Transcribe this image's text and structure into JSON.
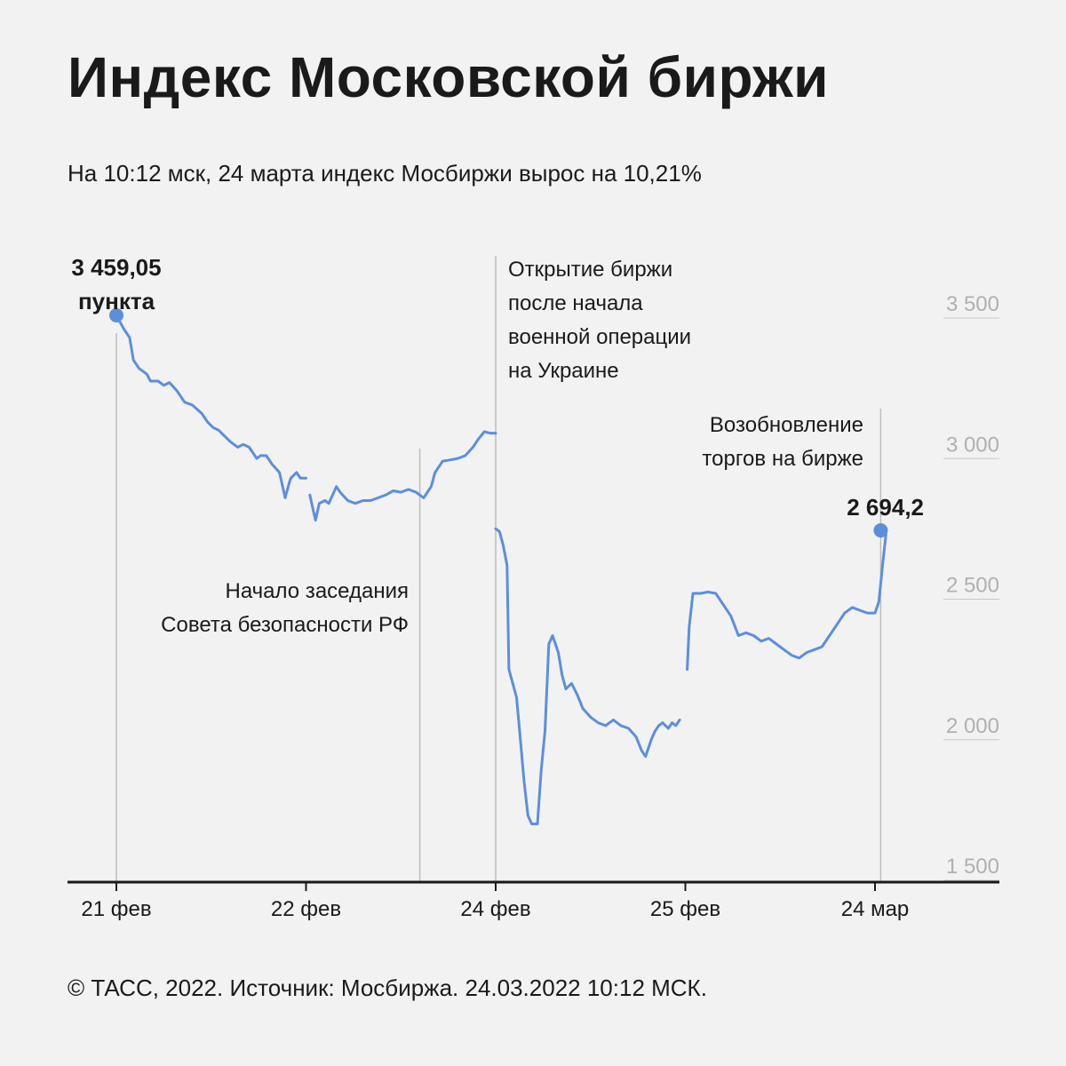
{
  "title": "Индекс Московской биржи",
  "subtitle": "На 10:12 мск, 24 марта индекс Мосбиржи вырос на 10,21%",
  "footer": "© ТАСС, 2022. Источник: Мосбиржа. 24.03.2022 10:12 МСК.",
  "colors": {
    "line": "#5b8fdc",
    "marker": "#5b8fdc",
    "grid": "#c8c8c8",
    "axis": "#1a1a1a",
    "background": "#f2f2f2"
  },
  "chart_data": {
    "type": "line",
    "title": "Индекс Московской биржи",
    "ylim": [
      1500,
      3500
    ],
    "yticks": [
      1500,
      2000,
      2500,
      3000,
      3500
    ],
    "ytick_labels": [
      "1 500",
      "2 000",
      "2 500",
      "3 000",
      "3 500"
    ],
    "grid": "horizontal",
    "x_domain": [
      0,
      5
    ],
    "xticks": [
      {
        "x": 0,
        "label": "21 фев"
      },
      {
        "x": 1,
        "label": "22 фев"
      },
      {
        "x": 2,
        "label": "24 фев"
      },
      {
        "x": 3,
        "label": "25 фев"
      },
      {
        "x": 4,
        "label": "24 мар"
      }
    ],
    "segments": [
      [
        [
          0.0,
          3459
        ],
        [
          0.04,
          3410
        ],
        [
          0.07,
          3380
        ],
        [
          0.09,
          3300
        ],
        [
          0.12,
          3270
        ],
        [
          0.16,
          3250
        ],
        [
          0.18,
          3225
        ],
        [
          0.22,
          3225
        ],
        [
          0.25,
          3210
        ],
        [
          0.28,
          3220
        ],
        [
          0.32,
          3190
        ],
        [
          0.36,
          3150
        ],
        [
          0.4,
          3140
        ],
        [
          0.45,
          3110
        ],
        [
          0.48,
          3080
        ],
        [
          0.51,
          3060
        ],
        [
          0.54,
          3050
        ],
        [
          0.57,
          3030
        ],
        [
          0.6,
          3010
        ],
        [
          0.64,
          2990
        ],
        [
          0.67,
          3000
        ],
        [
          0.7,
          2990
        ],
        [
          0.72,
          2970
        ],
        [
          0.74,
          2950
        ],
        [
          0.76,
          2960
        ],
        [
          0.79,
          2960
        ],
        [
          0.82,
          2930
        ],
        [
          0.86,
          2900
        ],
        [
          0.88,
          2840
        ],
        [
          0.89,
          2810
        ],
        [
          0.91,
          2860
        ],
        [
          0.92,
          2880
        ],
        [
          0.95,
          2900
        ],
        [
          0.97,
          2880
        ],
        [
          1.0,
          2880
        ]
      ],
      [
        [
          1.02,
          2820
        ],
        [
          1.04,
          2760
        ],
        [
          1.05,
          2730
        ],
        [
          1.07,
          2790
        ],
        [
          1.1,
          2800
        ],
        [
          1.12,
          2790
        ],
        [
          1.16,
          2850
        ],
        [
          1.18,
          2830
        ],
        [
          1.22,
          2800
        ],
        [
          1.26,
          2790
        ],
        [
          1.3,
          2800
        ],
        [
          1.34,
          2800
        ],
        [
          1.38,
          2810
        ],
        [
          1.42,
          2820
        ],
        [
          1.46,
          2835
        ],
        [
          1.5,
          2830
        ],
        [
          1.54,
          2840
        ],
        [
          1.58,
          2830
        ],
        [
          1.62,
          2810
        ],
        [
          1.66,
          2850
        ],
        [
          1.68,
          2900
        ],
        [
          1.72,
          2940
        ],
        [
          1.76,
          2945
        ],
        [
          1.8,
          2950
        ],
        [
          1.84,
          2960
        ],
        [
          1.88,
          2990
        ],
        [
          1.91,
          3020
        ],
        [
          1.94,
          3045
        ],
        [
          1.97,
          3040
        ],
        [
          2.0,
          3040
        ]
      ],
      [
        [
          2.0,
          2700
        ],
        [
          2.02,
          2690
        ],
        [
          2.04,
          2640
        ],
        [
          2.06,
          2570
        ],
        [
          2.07,
          2200
        ],
        [
          2.09,
          2150
        ],
        [
          2.11,
          2100
        ],
        [
          2.13,
          1950
        ],
        [
          2.15,
          1800
        ],
        [
          2.17,
          1680
        ],
        [
          2.19,
          1650
        ],
        [
          2.22,
          1650
        ],
        [
          2.24,
          1840
        ],
        [
          2.26,
          1980
        ],
        [
          2.28,
          2290
        ],
        [
          2.3,
          2320
        ],
        [
          2.33,
          2260
        ],
        [
          2.35,
          2180
        ],
        [
          2.37,
          2130
        ],
        [
          2.4,
          2150
        ],
        [
          2.43,
          2110
        ],
        [
          2.46,
          2060
        ],
        [
          2.5,
          2030
        ],
        [
          2.54,
          2010
        ],
        [
          2.58,
          2000
        ],
        [
          2.62,
          2020
        ],
        [
          2.66,
          2000
        ],
        [
          2.7,
          1990
        ],
        [
          2.74,
          1960
        ],
        [
          2.77,
          1910
        ],
        [
          2.79,
          1890
        ],
        [
          2.82,
          1950
        ],
        [
          2.84,
          1980
        ],
        [
          2.86,
          2000
        ],
        [
          2.88,
          2010
        ],
        [
          2.91,
          1990
        ],
        [
          2.93,
          2010
        ],
        [
          2.95,
          2000
        ],
        [
          2.97,
          2020
        ]
      ],
      [
        [
          3.01,
          2200
        ],
        [
          3.02,
          2350
        ],
        [
          3.04,
          2470
        ],
        [
          3.08,
          2470
        ],
        [
          3.12,
          2475
        ],
        [
          3.16,
          2470
        ],
        [
          3.2,
          2430
        ],
        [
          3.24,
          2390
        ],
        [
          3.28,
          2320
        ],
        [
          3.32,
          2330
        ],
        [
          3.36,
          2320
        ],
        [
          3.4,
          2300
        ],
        [
          3.44,
          2310
        ],
        [
          3.48,
          2290
        ],
        [
          3.52,
          2270
        ],
        [
          3.56,
          2250
        ],
        [
          3.6,
          2240
        ],
        [
          3.64,
          2260
        ],
        [
          3.68,
          2270
        ],
        [
          3.72,
          2280
        ],
        [
          3.76,
          2320
        ],
        [
          3.8,
          2360
        ],
        [
          3.84,
          2400
        ],
        [
          3.88,
          2420
        ],
        [
          3.92,
          2410
        ],
        [
          3.96,
          2400
        ],
        [
          4.0,
          2400
        ],
        [
          4.02,
          2440
        ],
        [
          4.04,
          2570
        ],
        [
          4.06,
          2694
        ]
      ]
    ],
    "annotations": [
      {
        "x": 0.0,
        "y": 3459.05,
        "lines": [
          "3 459,05",
          "пункта"
        ],
        "bold": true,
        "marker": true
      },
      {
        "x": 4.03,
        "y": 2694.2,
        "lines": [
          "2 694,2"
        ],
        "bold": true,
        "marker": true
      },
      {
        "x": 1.6,
        "lines": [
          "Начало заседания",
          "Совета безопасности РФ"
        ],
        "bold": false
      },
      {
        "x": 2.0,
        "lines": [
          "Открытие биржи",
          "после начала",
          "военной операции",
          "на Украине"
        ],
        "bold": false
      },
      {
        "x": 4.0,
        "lines": [
          "Возобновление",
          "торгов на бирже"
        ],
        "bold": false
      }
    ]
  }
}
